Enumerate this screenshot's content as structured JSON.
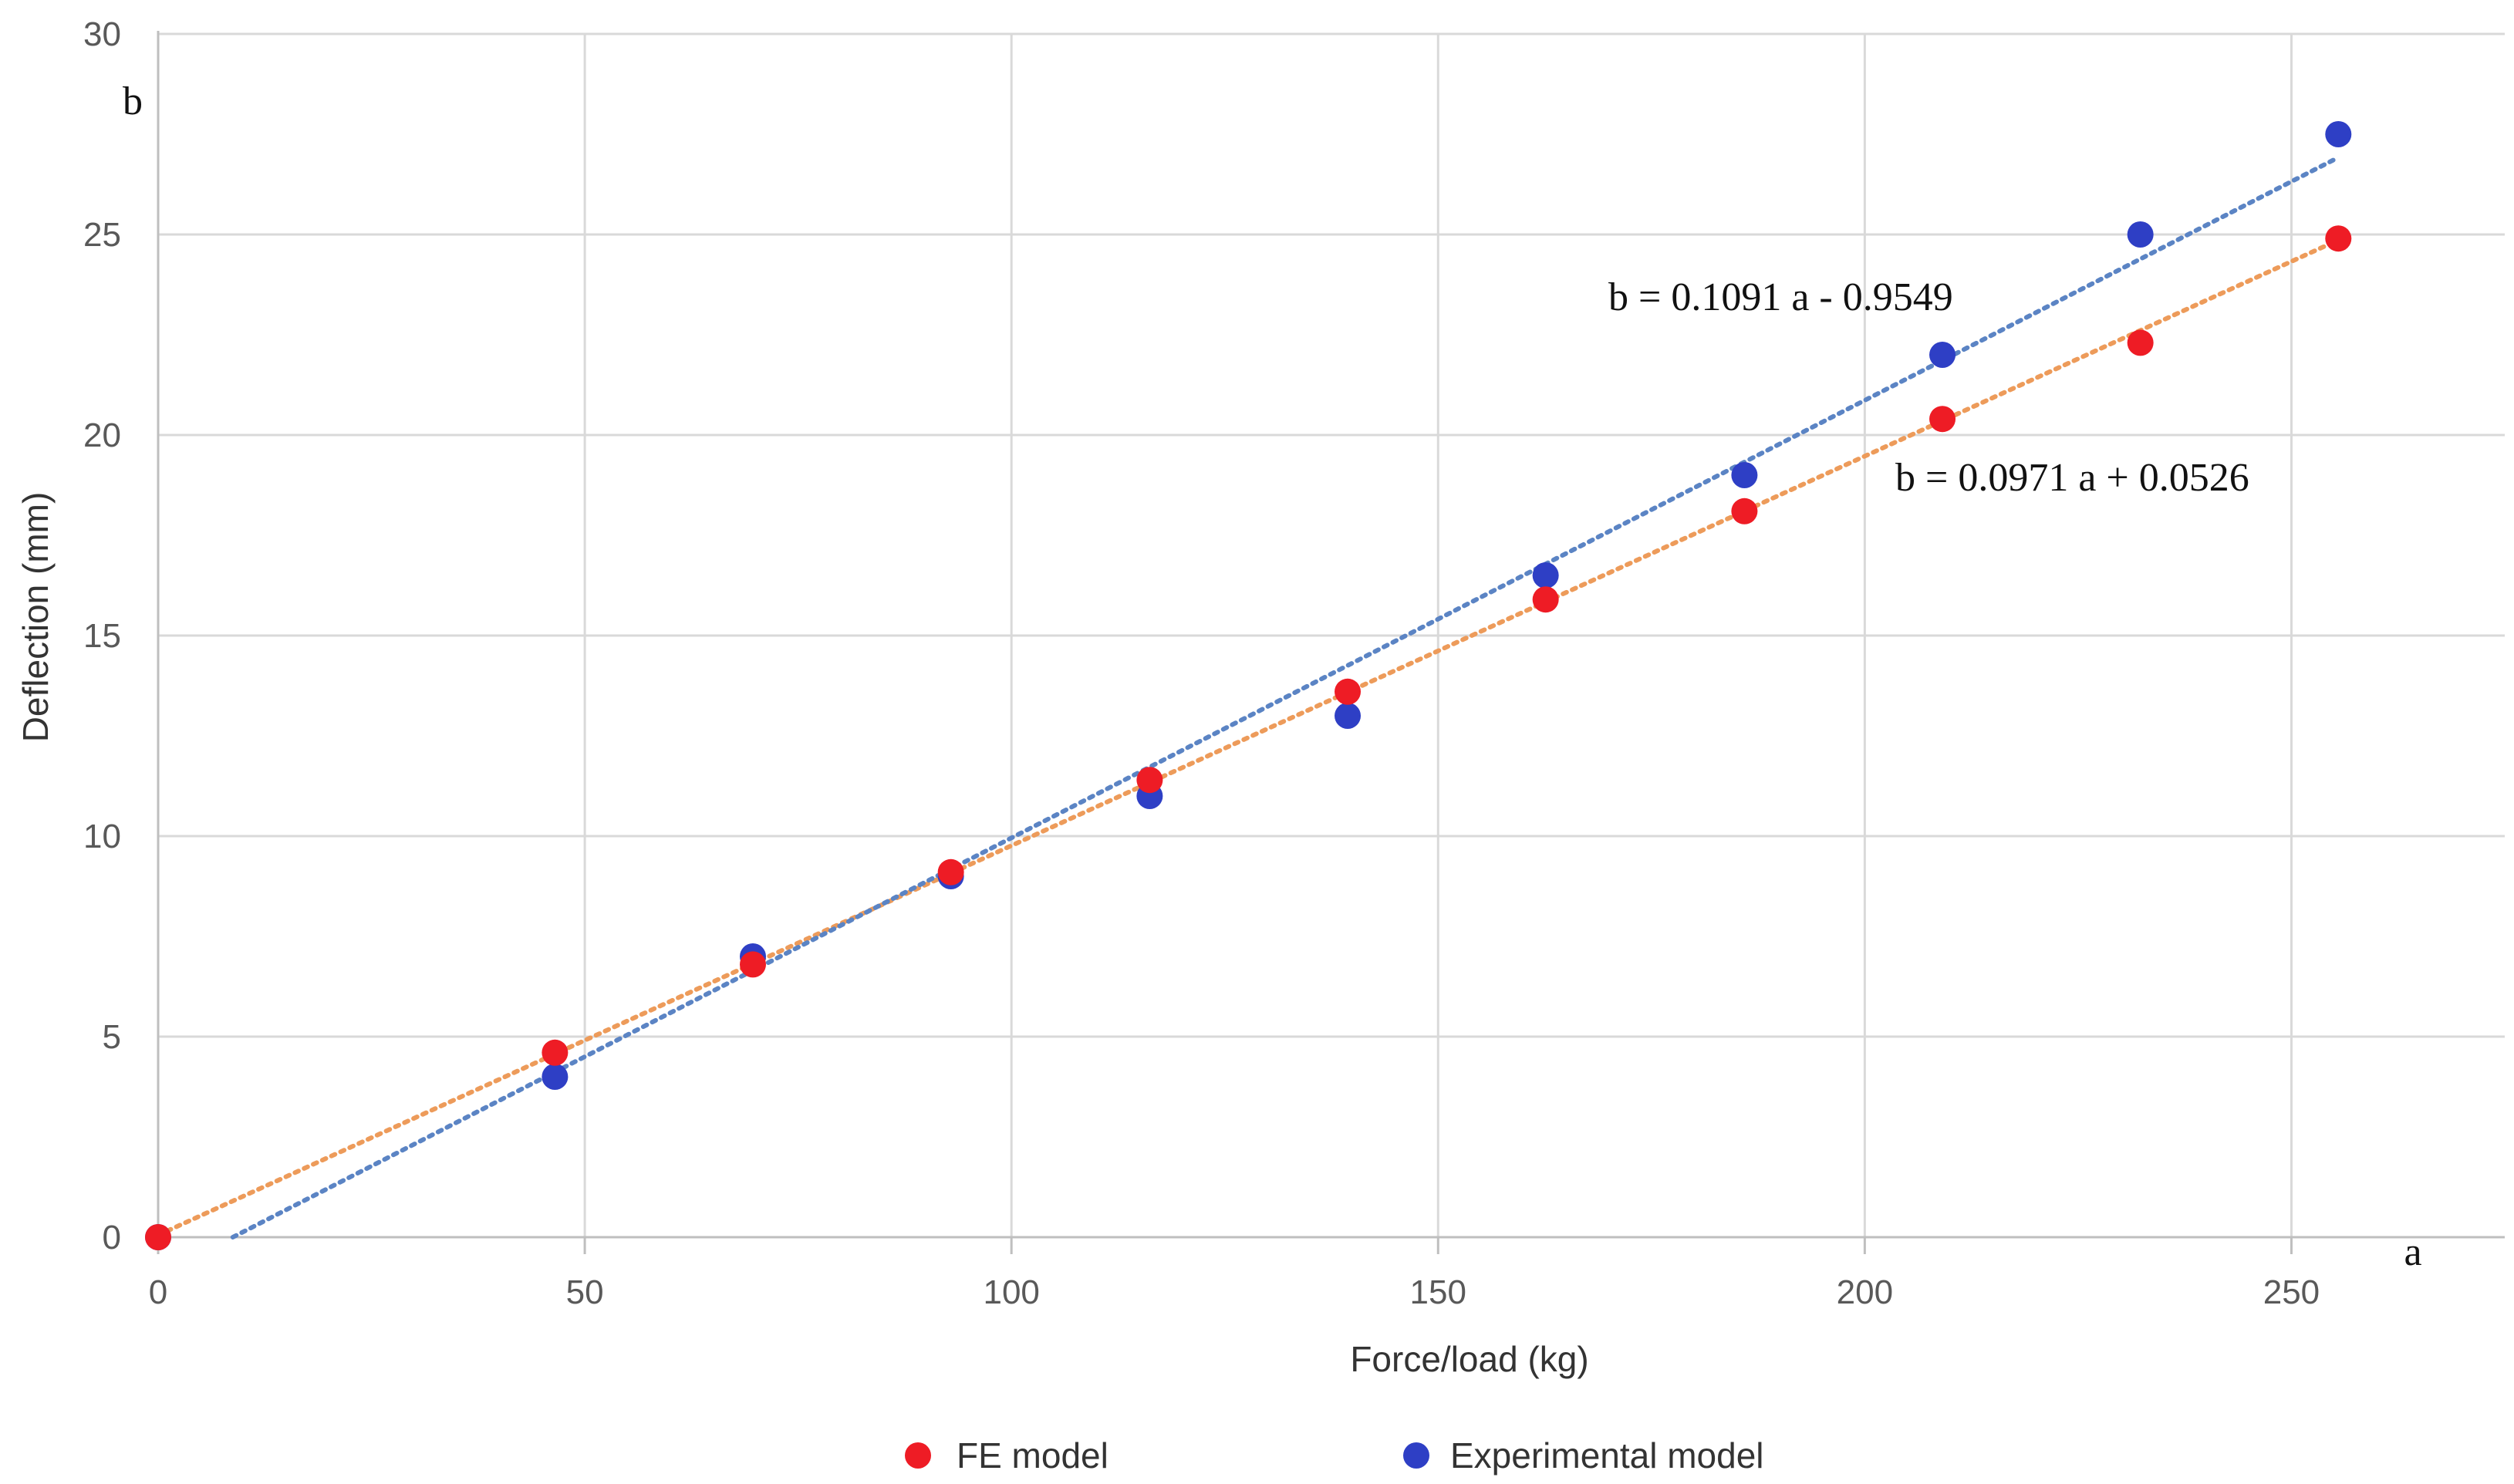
{
  "chart_data": {
    "type": "scatter",
    "title": "",
    "xlabel": "Force/load (kg)",
    "ylabel": "Deflection (mm)",
    "x_axis_letter": "a",
    "y_axis_letter": "b",
    "xlim": [
      0,
      275
    ],
    "ylim": [
      0,
      30
    ],
    "xticks": [
      0,
      50,
      100,
      150,
      200,
      250
    ],
    "yticks": [
      0,
      5,
      10,
      15,
      20,
      25,
      30
    ],
    "grid": true,
    "legend_position": "bottom",
    "series": [
      {
        "name": "FE model",
        "color": "#ee1c25",
        "trend_color": "#ed9b5a",
        "x": [
          0,
          46.5,
          69.7,
          92.9,
          116.2,
          139.4,
          162.6,
          185.9,
          209.1,
          232.3,
          255.5
        ],
        "y": [
          0,
          4.6,
          6.8,
          9.1,
          11.4,
          13.6,
          15.9,
          18.1,
          20.4,
          22.3,
          24.9
        ],
        "trendline": {
          "slope": 0.0971,
          "intercept": 0.0526,
          "x_range": [
            0,
            255.5
          ],
          "equation": "b = 0.0971 a + 0.0526"
        }
      },
      {
        "name": "Experimental model",
        "color": "#2e3fc5",
        "trend_color": "#5b84c4",
        "x": [
          0,
          46.5,
          69.7,
          92.9,
          116.2,
          139.4,
          162.6,
          185.9,
          209.1,
          232.3,
          255.5
        ],
        "y": [
          0,
          4.0,
          7.0,
          9.0,
          11.0,
          13.0,
          16.5,
          19.0,
          22.0,
          25.0,
          27.5
        ],
        "trendline": {
          "slope": 0.1091,
          "intercept": -0.9549,
          "x_range": [
            8.75,
            255.5
          ],
          "equation": "b = 0.1091 a - 0.9549"
        }
      }
    ]
  }
}
